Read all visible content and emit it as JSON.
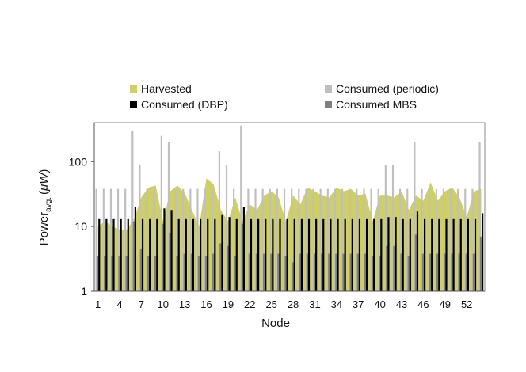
{
  "chart_data": {
    "type": "bar",
    "ylabel_main": "Power",
    "ylabel_sub": "avg.",
    "ylabel_paren_open": "(",
    "ylabel_unit": "μW",
    "ylabel_paren_close": ")",
    "xlabel": "Node",
    "yscale": "log",
    "ylim": [
      1,
      400
    ],
    "y_ticks": [
      "1",
      "10",
      "100"
    ],
    "x_ticks": [
      "1",
      "4",
      "7",
      "10",
      "13",
      "16",
      "19",
      "22",
      "25",
      "28",
      "31",
      "34",
      "37",
      "40",
      "43",
      "46",
      "49",
      "52"
    ],
    "x": [
      1,
      2,
      3,
      4,
      5,
      6,
      7,
      8,
      9,
      10,
      11,
      12,
      13,
      14,
      15,
      16,
      17,
      18,
      19,
      20,
      21,
      22,
      23,
      24,
      25,
      26,
      27,
      28,
      29,
      30,
      31,
      32,
      33,
      34,
      35,
      36,
      37,
      38,
      39,
      40,
      41,
      42,
      43,
      44,
      45,
      46,
      47,
      48,
      49,
      50,
      51,
      52,
      53,
      54
    ],
    "legend_position": "top",
    "colors": {
      "harvested": "#cfcf6a",
      "consumed_periodic": "#bfbfbf",
      "consumed_dbp": "#000000",
      "consumed_mbs": "#7f7f7f"
    },
    "series": [
      {
        "name": "Harvested",
        "values": [
          10,
          12,
          10,
          9,
          9,
          13,
          28,
          40,
          43,
          12,
          35,
          43,
          33,
          18,
          10,
          55,
          45,
          18,
          12,
          28,
          12,
          22,
          18,
          30,
          35,
          28,
          12,
          30,
          22,
          40,
          35,
          30,
          28,
          40,
          35,
          38,
          30,
          32,
          12,
          30,
          30,
          28,
          35,
          18,
          30,
          25,
          48,
          25,
          35,
          40,
          28,
          14,
          35,
          38
        ]
      },
      {
        "name": "Consumed (periodic)",
        "values": [
          38,
          38,
          38,
          38,
          38,
          300,
          90,
          38,
          38,
          250,
          200,
          38,
          38,
          38,
          38,
          38,
          38,
          145,
          90,
          38,
          360,
          38,
          38,
          38,
          38,
          38,
          38,
          38,
          38,
          38,
          38,
          38,
          38,
          38,
          38,
          38,
          38,
          38,
          38,
          38,
          90,
          90,
          38,
          38,
          200,
          38,
          38,
          38,
          38,
          38,
          38,
          38,
          38,
          200
        ]
      },
      {
        "name": "Consumed (DBP)",
        "values": [
          13,
          13,
          13,
          13,
          13,
          20,
          13,
          13,
          13,
          19,
          18,
          13,
          13,
          13,
          13,
          13,
          13,
          15,
          14,
          13,
          20,
          13,
          13,
          13,
          13,
          13,
          13,
          13,
          13,
          13,
          13,
          13,
          13,
          13,
          13,
          13,
          13,
          13,
          13,
          13,
          14,
          14,
          13,
          13,
          17,
          13,
          13,
          13,
          13,
          13,
          13,
          13,
          13,
          16
        ]
      },
      {
        "name": "Consumed MBS",
        "values": [
          3.5,
          3.5,
          3.5,
          3.5,
          3.5,
          12,
          4.5,
          3.5,
          3.5,
          11,
          8,
          3.5,
          3.8,
          3.8,
          3.5,
          3.5,
          3.8,
          5.5,
          5,
          3.5,
          11,
          3.8,
          3.8,
          3.8,
          3.8,
          3.8,
          3.5,
          2.8,
          3.8,
          3.8,
          3.8,
          3.8,
          3.8,
          3.8,
          3.8,
          3.8,
          3.8,
          3.8,
          3.5,
          3.5,
          5,
          5,
          3.8,
          3.5,
          7.5,
          3.8,
          3.8,
          3.8,
          3.8,
          3.8,
          3.8,
          3.8,
          3.8,
          7
        ]
      }
    ]
  }
}
